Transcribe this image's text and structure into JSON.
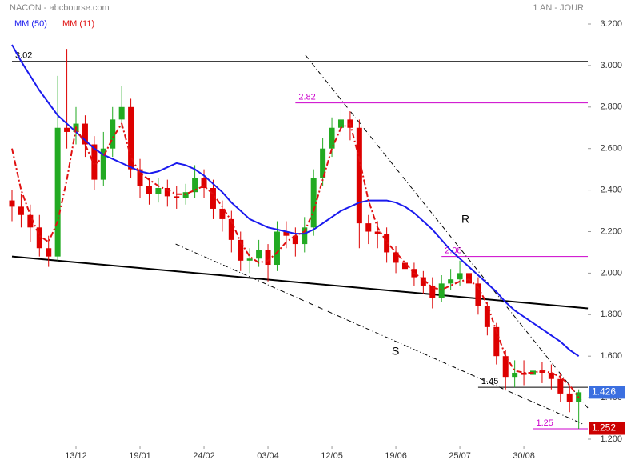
{
  "chart_data": {
    "type": "candlestick",
    "title": "NACON - abcbourse.com",
    "subtitle": "1 AN - JOUR",
    "categories": [
      null,
      null,
      null,
      null,
      null,
      null,
      null,
      "13/12",
      null,
      null,
      null,
      null,
      null,
      null,
      "19/01",
      null,
      null,
      null,
      null,
      null,
      null,
      "24/02",
      null,
      null,
      null,
      null,
      null,
      null,
      "03/04",
      null,
      null,
      null,
      null,
      null,
      null,
      "12/05",
      null,
      null,
      null,
      null,
      null,
      null,
      "19/06",
      null,
      null,
      null,
      null,
      null,
      null,
      "25/07",
      null,
      null,
      null,
      null,
      null,
      null,
      "30/08",
      null,
      null,
      null,
      null,
      null,
      null
    ],
    "open": [
      2.35,
      2.32,
      2.28,
      2.22,
      2.12,
      2.08,
      2.7,
      2.68,
      2.72,
      2.62,
      2.45,
      2.6,
      2.74,
      2.8,
      2.5,
      2.42,
      2.38,
      2.41,
      2.37,
      2.36,
      2.39,
      2.46,
      2.41,
      2.31,
      2.26,
      2.16,
      2.06,
      2.07,
      2.11,
      2.04,
      2.2,
      2.18,
      2.14,
      2.22,
      2.46,
      2.6,
      2.7,
      2.74,
      2.7,
      2.24,
      2.2,
      2.19,
      2.1,
      2.05,
      2.02,
      1.98,
      1.94,
      1.88,
      1.95,
      1.97,
      2.0,
      1.95,
      1.84,
      1.74,
      1.6,
      1.5,
      1.52,
      1.51,
      1.53,
      1.52,
      1.49,
      1.42,
      1.38
    ],
    "high": [
      2.4,
      2.38,
      2.33,
      2.28,
      2.18,
      2.95,
      3.08,
      2.8,
      2.76,
      2.66,
      2.68,
      2.8,
      2.9,
      2.84,
      2.55,
      2.46,
      2.46,
      2.45,
      2.42,
      2.43,
      2.52,
      2.5,
      2.45,
      2.35,
      2.3,
      2.2,
      2.12,
      2.16,
      2.14,
      2.25,
      2.25,
      2.22,
      2.27,
      2.5,
      2.65,
      2.75,
      2.82,
      2.78,
      2.74,
      2.28,
      2.25,
      2.22,
      2.13,
      2.08,
      2.05,
      2.01,
      1.98,
      1.99,
      2.02,
      2.06,
      2.04,
      1.98,
      1.86,
      1.76,
      1.63,
      1.58,
      1.58,
      1.58,
      1.57,
      1.56,
      1.52,
      1.46,
      1.44
    ],
    "low": [
      2.25,
      2.22,
      2.15,
      2.08,
      2.03,
      2.06,
      2.6,
      2.62,
      2.56,
      2.4,
      2.42,
      2.56,
      2.7,
      2.46,
      2.36,
      2.33,
      2.34,
      2.32,
      2.31,
      2.33,
      2.36,
      2.36,
      2.26,
      2.2,
      2.1,
      2.01,
      2.0,
      2.03,
      1.96,
      2.01,
      2.12,
      2.08,
      2.1,
      2.18,
      2.42,
      2.56,
      2.66,
      2.64,
      2.12,
      2.14,
      2.12,
      2.05,
      2.0,
      1.97,
      1.94,
      1.9,
      1.83,
      1.86,
      1.92,
      1.94,
      1.9,
      1.8,
      1.7,
      1.56,
      1.44,
      1.45,
      1.46,
      1.48,
      1.47,
      1.44,
      1.38,
      1.33,
      1.25
    ],
    "close": [
      2.32,
      2.28,
      2.22,
      2.12,
      2.08,
      2.7,
      2.68,
      2.72,
      2.62,
      2.45,
      2.6,
      2.74,
      2.8,
      2.5,
      2.42,
      2.38,
      2.41,
      2.37,
      2.36,
      2.39,
      2.46,
      2.41,
      2.31,
      2.26,
      2.16,
      2.06,
      2.07,
      2.11,
      2.04,
      2.2,
      2.18,
      2.14,
      2.22,
      2.46,
      2.6,
      2.7,
      2.74,
      2.7,
      2.24,
      2.2,
      2.19,
      2.1,
      2.05,
      2.02,
      1.98,
      1.94,
      1.88,
      1.95,
      1.97,
      2.0,
      1.95,
      1.84,
      1.74,
      1.6,
      1.5,
      1.52,
      1.51,
      1.53,
      1.52,
      1.49,
      1.42,
      1.38,
      1.426
    ],
    "up_color": "#22aa22",
    "down_color": "#dd0000",
    "series": [
      {
        "name": "MM (50)",
        "color": "#1a1aee",
        "values": [
          3.1,
          3.02,
          2.95,
          2.88,
          2.82,
          2.76,
          2.72,
          2.68,
          2.64,
          2.6,
          2.57,
          2.55,
          2.53,
          2.51,
          2.49,
          2.48,
          2.49,
          2.51,
          2.53,
          2.52,
          2.5,
          2.47,
          2.43,
          2.39,
          2.34,
          2.3,
          2.26,
          2.24,
          2.22,
          2.21,
          2.2,
          2.19,
          2.19,
          2.21,
          2.24,
          2.27,
          2.3,
          2.32,
          2.34,
          2.35,
          2.35,
          2.35,
          2.34,
          2.32,
          2.29,
          2.25,
          2.21,
          2.16,
          2.11,
          2.07,
          2.03,
          1.99,
          1.95,
          1.91,
          1.86,
          1.82,
          1.79,
          1.76,
          1.73,
          1.7,
          1.67,
          1.63,
          1.6
        ]
      },
      {
        "name": "MM (11)",
        "color": "#e01010",
        "values": [
          2.6,
          2.4,
          2.28,
          2.18,
          2.15,
          2.25,
          2.45,
          2.7,
          2.62,
          2.52,
          2.56,
          2.65,
          2.72,
          2.56,
          2.48,
          2.45,
          2.42,
          2.4,
          2.38,
          2.38,
          2.4,
          2.42,
          2.38,
          2.32,
          2.25,
          2.15,
          2.08,
          2.05,
          2.06,
          2.1,
          2.15,
          2.18,
          2.2,
          2.3,
          2.45,
          2.6,
          2.7,
          2.72,
          2.55,
          2.35,
          2.22,
          2.15,
          2.1,
          2.05,
          2.0,
          1.97,
          1.93,
          1.92,
          1.94,
          1.96,
          1.97,
          1.93,
          1.85,
          1.72,
          1.6,
          1.53,
          1.52,
          1.52,
          1.53,
          1.52,
          1.5,
          1.46,
          1.4
        ]
      }
    ],
    "levels": [
      {
        "value": 3.02,
        "color": "#000000",
        "start": 0
      },
      {
        "value": 2.82,
        "color": "#cc00cc",
        "start": 31
      },
      {
        "value": 2.08,
        "color": "#cc00cc",
        "start": 47
      },
      {
        "value": 1.45,
        "color": "#000000",
        "start": 51
      },
      {
        "value": 1.25,
        "color": "#cc00cc",
        "start": 57
      }
    ],
    "trendlines": [
      {
        "from": [
          0,
          2.08
        ],
        "to": [
          63,
          1.83
        ],
        "style": "solid"
      },
      {
        "from": [
          32.1,
          3.05
        ],
        "to": [
          63,
          1.35
        ],
        "style": "dashdot"
      },
      {
        "from": [
          17.9,
          2.14
        ],
        "to": [
          62.6,
          1.27
        ],
        "style": "dashdot"
      }
    ],
    "annotations": [
      {
        "text": "R"
      },
      {
        "text": "S"
      }
    ],
    "last_price": 1.426,
    "low_price": 1.252,
    "ylim": [
      1.2,
      3.2
    ],
    "yticks": [
      {
        "value": 1.2,
        "label": "1.200"
      },
      {
        "value": 1.4,
        "label": "1.400"
      },
      {
        "value": 1.6,
        "label": "1.600"
      },
      {
        "value": 1.8,
        "label": "1.800"
      },
      {
        "value": 2.0,
        "label": "2.000"
      },
      {
        "value": 2.2,
        "label": "2.200"
      },
      {
        "value": 2.4,
        "label": "2.400"
      },
      {
        "value": 2.6,
        "label": "2.600"
      },
      {
        "value": 2.8,
        "label": "2.800"
      },
      {
        "value": 3.0,
        "label": "3.000"
      },
      {
        "value": 3.2,
        "label": "3.200"
      }
    ]
  }
}
